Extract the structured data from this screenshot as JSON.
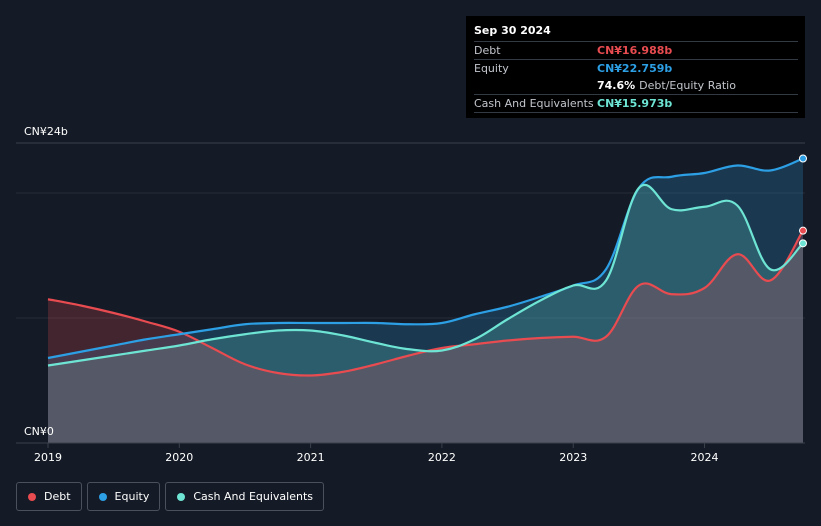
{
  "tooltip": {
    "date": "Sep 30 2024",
    "rows": [
      {
        "label": "Debt",
        "value": "CN¥16.988b",
        "color": "#e84b50"
      },
      {
        "label": "Equity",
        "value": "CN¥22.759b",
        "color": "#2c9fe5"
      },
      {
        "label": "",
        "value": "74.6%",
        "sub": "Debt/Equity Ratio",
        "color": "#ffffff"
      },
      {
        "label": "Cash And Equivalents",
        "value": "CN¥15.973b",
        "color": "#6ee5d4"
      }
    ]
  },
  "legend": [
    {
      "label": "Debt",
      "color": "#e84b50"
    },
    {
      "label": "Equity",
      "color": "#2c9fe5"
    },
    {
      "label": "Cash And Equivalents",
      "color": "#6ee5d4"
    }
  ],
  "chart_data": {
    "type": "area",
    "ylabel_top": "CN¥24b",
    "ylabel_bottom": "CN¥0",
    "ylim": [
      0,
      24
    ],
    "xlim": [
      2019.0,
      2024.75
    ],
    "xticks": [
      "2019",
      "2020",
      "2021",
      "2022",
      "2023",
      "2024"
    ],
    "grid": true,
    "series": [
      {
        "name": "Debt",
        "color": "#e84b50",
        "x": [
          2019.0,
          2019.25,
          2019.5,
          2019.75,
          2020.0,
          2020.25,
          2020.5,
          2020.75,
          2021.0,
          2021.25,
          2021.5,
          2021.75,
          2022.0,
          2022.25,
          2022.5,
          2022.75,
          2023.0,
          2023.25,
          2023.5,
          2023.75,
          2024.0,
          2024.25,
          2024.5,
          2024.75
        ],
        "y": [
          11.5,
          11.0,
          10.4,
          9.7,
          8.9,
          7.6,
          6.3,
          5.6,
          5.4,
          5.7,
          6.3,
          7.0,
          7.6,
          7.9,
          8.2,
          8.4,
          8.5,
          8.5,
          12.6,
          11.9,
          12.4,
          15.1,
          13.0,
          16.988
        ]
      },
      {
        "name": "Equity",
        "color": "#2c9fe5",
        "x": [
          2019.0,
          2019.25,
          2019.5,
          2019.75,
          2020.0,
          2020.25,
          2020.5,
          2020.75,
          2021.0,
          2021.25,
          2021.5,
          2021.75,
          2022.0,
          2022.25,
          2022.5,
          2022.75,
          2023.0,
          2023.25,
          2023.5,
          2023.75,
          2024.0,
          2024.25,
          2024.5,
          2024.75
        ],
        "y": [
          6.8,
          7.3,
          7.8,
          8.3,
          8.7,
          9.1,
          9.5,
          9.6,
          9.6,
          9.6,
          9.6,
          9.5,
          9.6,
          10.3,
          10.9,
          11.7,
          12.6,
          13.9,
          20.4,
          21.3,
          21.6,
          22.2,
          21.8,
          22.759
        ]
      },
      {
        "name": "Cash And Equivalents",
        "color": "#6ee5d4",
        "x": [
          2019.0,
          2019.25,
          2019.5,
          2019.75,
          2020.0,
          2020.25,
          2020.5,
          2020.75,
          2021.0,
          2021.25,
          2021.5,
          2021.75,
          2022.0,
          2022.25,
          2022.5,
          2022.75,
          2023.0,
          2023.25,
          2023.5,
          2023.75,
          2024.0,
          2024.25,
          2024.5,
          2024.75
        ],
        "y": [
          6.2,
          6.6,
          7.0,
          7.4,
          7.8,
          8.3,
          8.7,
          9.0,
          9.0,
          8.6,
          8.0,
          7.5,
          7.4,
          8.3,
          9.9,
          11.4,
          12.6,
          13.0,
          20.4,
          18.7,
          18.9,
          19.0,
          13.9,
          15.973
        ]
      }
    ]
  }
}
